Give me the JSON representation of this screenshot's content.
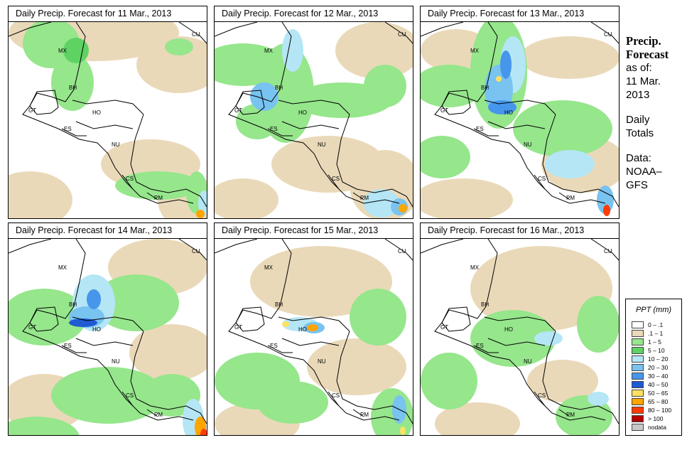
{
  "panels": [
    {
      "title": "Daily Precip. Forecast for  11 Mar., 2013"
    },
    {
      "title": "Daily Precip. Forecast for  12 Mar., 2013"
    },
    {
      "title": "Daily Precip. Forecast for  13 Mar., 2013"
    },
    {
      "title": "Daily Precip. Forecast for  14 Mar., 2013"
    },
    {
      "title": "Daily Precip. Forecast for  15 Mar., 2013"
    },
    {
      "title": "Daily Precip. Forecast for  16 Mar., 2013"
    }
  ],
  "country_labels": [
    "CU",
    "MX",
    "BH",
    "GT",
    "HO",
    "ES",
    "NU",
    "CS",
    "PM"
  ],
  "sidebar": {
    "heading1": "Precip.",
    "heading2": "Forecast",
    "asof1": "as of:",
    "asof2": "11 Mar.",
    "asof3": "2013",
    "totals1": "Daily",
    "totals2": "Totals",
    "data1": "Data:",
    "data2": "NOAA–",
    "data3": "GFS"
  },
  "legend": {
    "title": "PPT (mm)",
    "items": [
      {
        "label": "0 – .1",
        "color": "#ffffff"
      },
      {
        "label": ".1 – 1",
        "color": "#ead9b9"
      },
      {
        "label": "1 – 5",
        "color": "#96e68c"
      },
      {
        "label": "5 – 10",
        "color": "#5fd264"
      },
      {
        "label": "10 – 20",
        "color": "#b4e6f5"
      },
      {
        "label": "20 – 30",
        "color": "#78c3f0"
      },
      {
        "label": "30 – 40",
        "color": "#4696eb"
      },
      {
        "label": "40 – 50",
        "color": "#1e5ad2"
      },
      {
        "label": "50 – 65",
        "color": "#ffe164"
      },
      {
        "label": "65 – 80",
        "color": "#ffa500"
      },
      {
        "label": "80 – 100",
        "color": "#ff3c00"
      },
      {
        "label": "> 100",
        "color": "#b40000"
      },
      {
        "label": "nodata",
        "color": "#c8c8c8"
      }
    ]
  }
}
